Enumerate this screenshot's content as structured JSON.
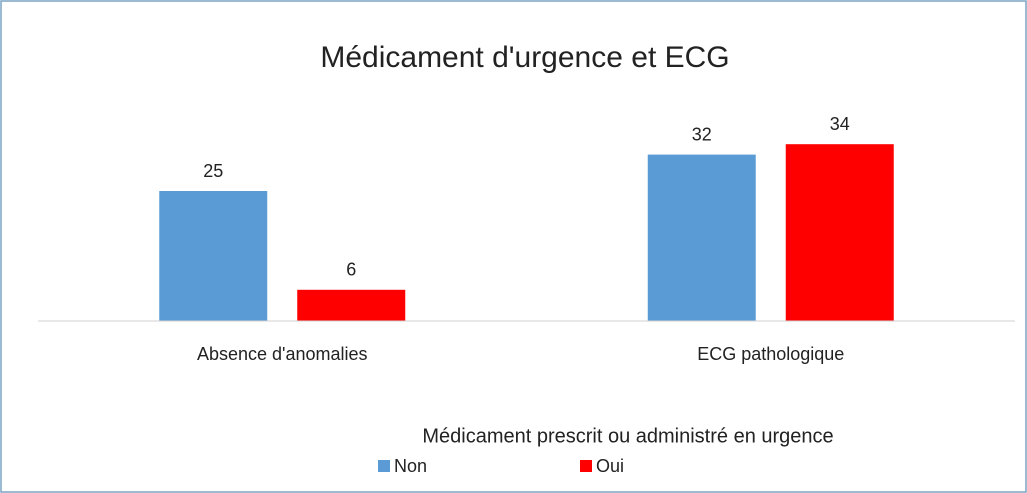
{
  "chart_data": {
    "type": "bar",
    "title": "Médicament d'urgence et ECG",
    "categories": [
      "Absence d'anomalies",
      "ECG pathologique"
    ],
    "series": [
      {
        "name": "Non",
        "color": "#5b9bd5",
        "values": [
          25,
          32
        ]
      },
      {
        "name": "Oui",
        "color": "#ff0000",
        "values": [
          6,
          34
        ]
      }
    ],
    "legend_title": "Médicament prescrit ou administré en urgence",
    "ylim": [
      0,
      40
    ],
    "legend": "bottom"
  }
}
